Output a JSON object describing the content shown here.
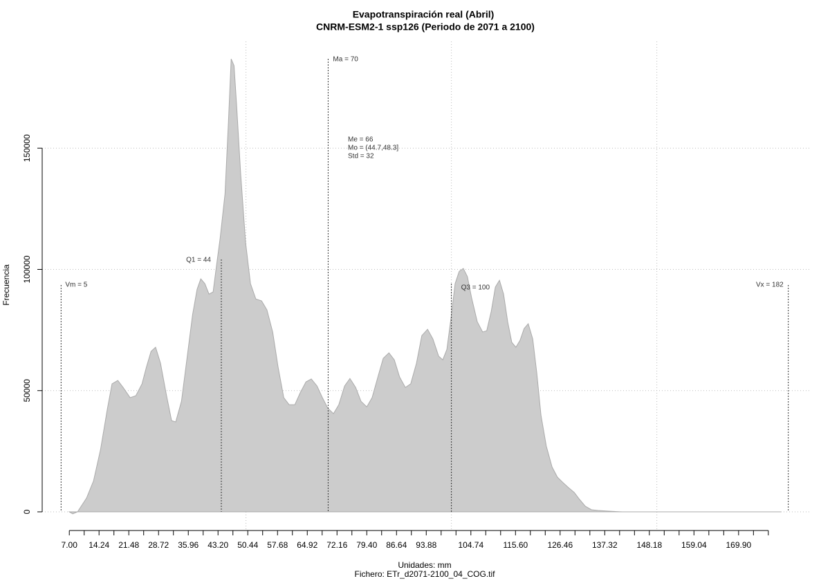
{
  "chart_data": {
    "type": "area",
    "title": "Evapotranspiración real (Abril)",
    "subtitle": "CNRM-ESM2-1 ssp126 (Periodo de 2071 a 2100)",
    "x_label": "Unidades: mm",
    "caption": "Fichero: ETr_d2071-2100_04_COG.tif",
    "y_label": "Frecuencia",
    "color": "#cccccc",
    "xlim": [
      0.4,
      187.1
    ],
    "ylim": [
      -7700,
      194000
    ],
    "yticks": [
      0,
      50000,
      100000,
      150000
    ],
    "xticks": [
      {
        "value": 7,
        "label": "7.00"
      },
      {
        "value": 14.24,
        "label": "14.24"
      },
      {
        "value": 21.48,
        "label": "21.48"
      },
      {
        "value": 28.72,
        "label": "28.72"
      },
      {
        "value": 35.96,
        "label": "35.96"
      },
      {
        "value": 43.2,
        "label": "43.20"
      },
      {
        "value": 50.44,
        "label": "50.44"
      },
      {
        "value": 57.68,
        "label": "57.68"
      },
      {
        "value": 64.92,
        "label": "64.92"
      },
      {
        "value": 72.16,
        "label": "72.16"
      },
      {
        "value": 79.4,
        "label": "79.40"
      },
      {
        "value": 86.64,
        "label": "86.64"
      },
      {
        "value": 93.88,
        "label": "93.88"
      },
      {
        "value": 104.74,
        "label": "104.74"
      },
      {
        "value": 115.6,
        "label": "115.60"
      },
      {
        "value": 126.46,
        "label": "126.46"
      },
      {
        "value": 137.32,
        "label": "137.32"
      },
      {
        "value": 148.18,
        "label": "148.18"
      },
      {
        "value": 159.04,
        "label": "159.04"
      },
      {
        "value": 169.9,
        "label": "169.90"
      }
    ],
    "xminorticks": [
      10.62,
      17.86,
      25.1,
      32.34,
      39.58,
      46.82,
      54.06,
      61.3,
      68.54,
      75.78,
      83.02,
      90.26,
      97.5,
      101.12,
      108.36,
      111.98,
      119.22,
      122.84,
      130.08,
      133.7,
      140.94,
      144.56,
      151.8,
      155.42,
      162.66,
      166.28,
      173.52,
      177.14
    ],
    "xgrid": [
      50,
      100,
      150
    ],
    "grid": true,
    "x": [
      7,
      7.84,
      9,
      11.2,
      12.9,
      14.6,
      16.3,
      17.4,
      18.8,
      20.1,
      21.8,
      23.2,
      24.7,
      25.8,
      26.9,
      28,
      29.2,
      30.6,
      31.9,
      32.9,
      34.3,
      35.6,
      37,
      38.1,
      39,
      40,
      41,
      42,
      42.8,
      43.7,
      44.9,
      45.7,
      46.4,
      47.1,
      47.7,
      48.7,
      49.9,
      51.1,
      52.4,
      53.8,
      55.1,
      56.5,
      57.8,
      59.2,
      60.5,
      61.9,
      63.2,
      64.6,
      65.9,
      67.3,
      68.6,
      69.9,
      71.3,
      72.6,
      74,
      75.3,
      76.7,
      78,
      79.4,
      80.7,
      82.1,
      83.4,
      84.8,
      86.1,
      87.4,
      88.8,
      90.1,
      91.5,
      92.8,
      94.2,
      95.5,
      96.9,
      97.9,
      98.9,
      99.9,
      100.9,
      101.9,
      102.9,
      103.9,
      104.9,
      106.3,
      107.6,
      108.6,
      109.7,
      110.7,
      111.7,
      112.7,
      113.7,
      114.7,
      115.7,
      116.7,
      117.7,
      118.7,
      119.8,
      120.8,
      121.8,
      123.1,
      124.5,
      125.8,
      127.2,
      128.5,
      129.9,
      131.2,
      132.6,
      134.1,
      135.7,
      138.3,
      141.6,
      180.3
    ],
    "values": [
      0,
      -850,
      0,
      5700,
      12800,
      25700,
      42800,
      52800,
      54200,
      51300,
      47100,
      47900,
      52800,
      59900,
      66200,
      67900,
      61300,
      48500,
      37600,
      37100,
      45600,
      62700,
      81300,
      91800,
      96100,
      94100,
      89800,
      90700,
      101200,
      112700,
      131200,
      159700,
      186800,
      184000,
      168300,
      139700,
      111200,
      94100,
      87800,
      87000,
      83300,
      74200,
      59900,
      47100,
      44200,
      44200,
      49100,
      53600,
      54800,
      51900,
      47100,
      42800,
      40500,
      44200,
      51900,
      55000,
      51300,
      45600,
      43300,
      47100,
      55600,
      63300,
      65600,
      62700,
      55600,
      51300,
      52800,
      61300,
      72700,
      75300,
      71300,
      64200,
      62700,
      67000,
      79900,
      94100,
      99200,
      100400,
      97000,
      88400,
      78400,
      74200,
      74700,
      82700,
      92700,
      95500,
      89800,
      78400,
      69900,
      67900,
      70700,
      75600,
      77600,
      71300,
      57000,
      39900,
      27100,
      18500,
      14300,
      12000,
      10000,
      8000,
      5100,
      2300,
      860,
      570,
      290,
      0,
      0
    ],
    "markers": [
      {
        "label": "Vm = 5",
        "x": 5
      },
      {
        "label": "Q1 = 44",
        "x": 44
      },
      {
        "label": "Ma = 70",
        "x": 70
      },
      {
        "label": "Q3 = 100",
        "x": 100
      },
      {
        "label": "Vx = 182",
        "x": 182
      }
    ],
    "stats": [
      "Me = 66",
      "Mo = (44.7,48.3]",
      "Std = 32"
    ]
  }
}
